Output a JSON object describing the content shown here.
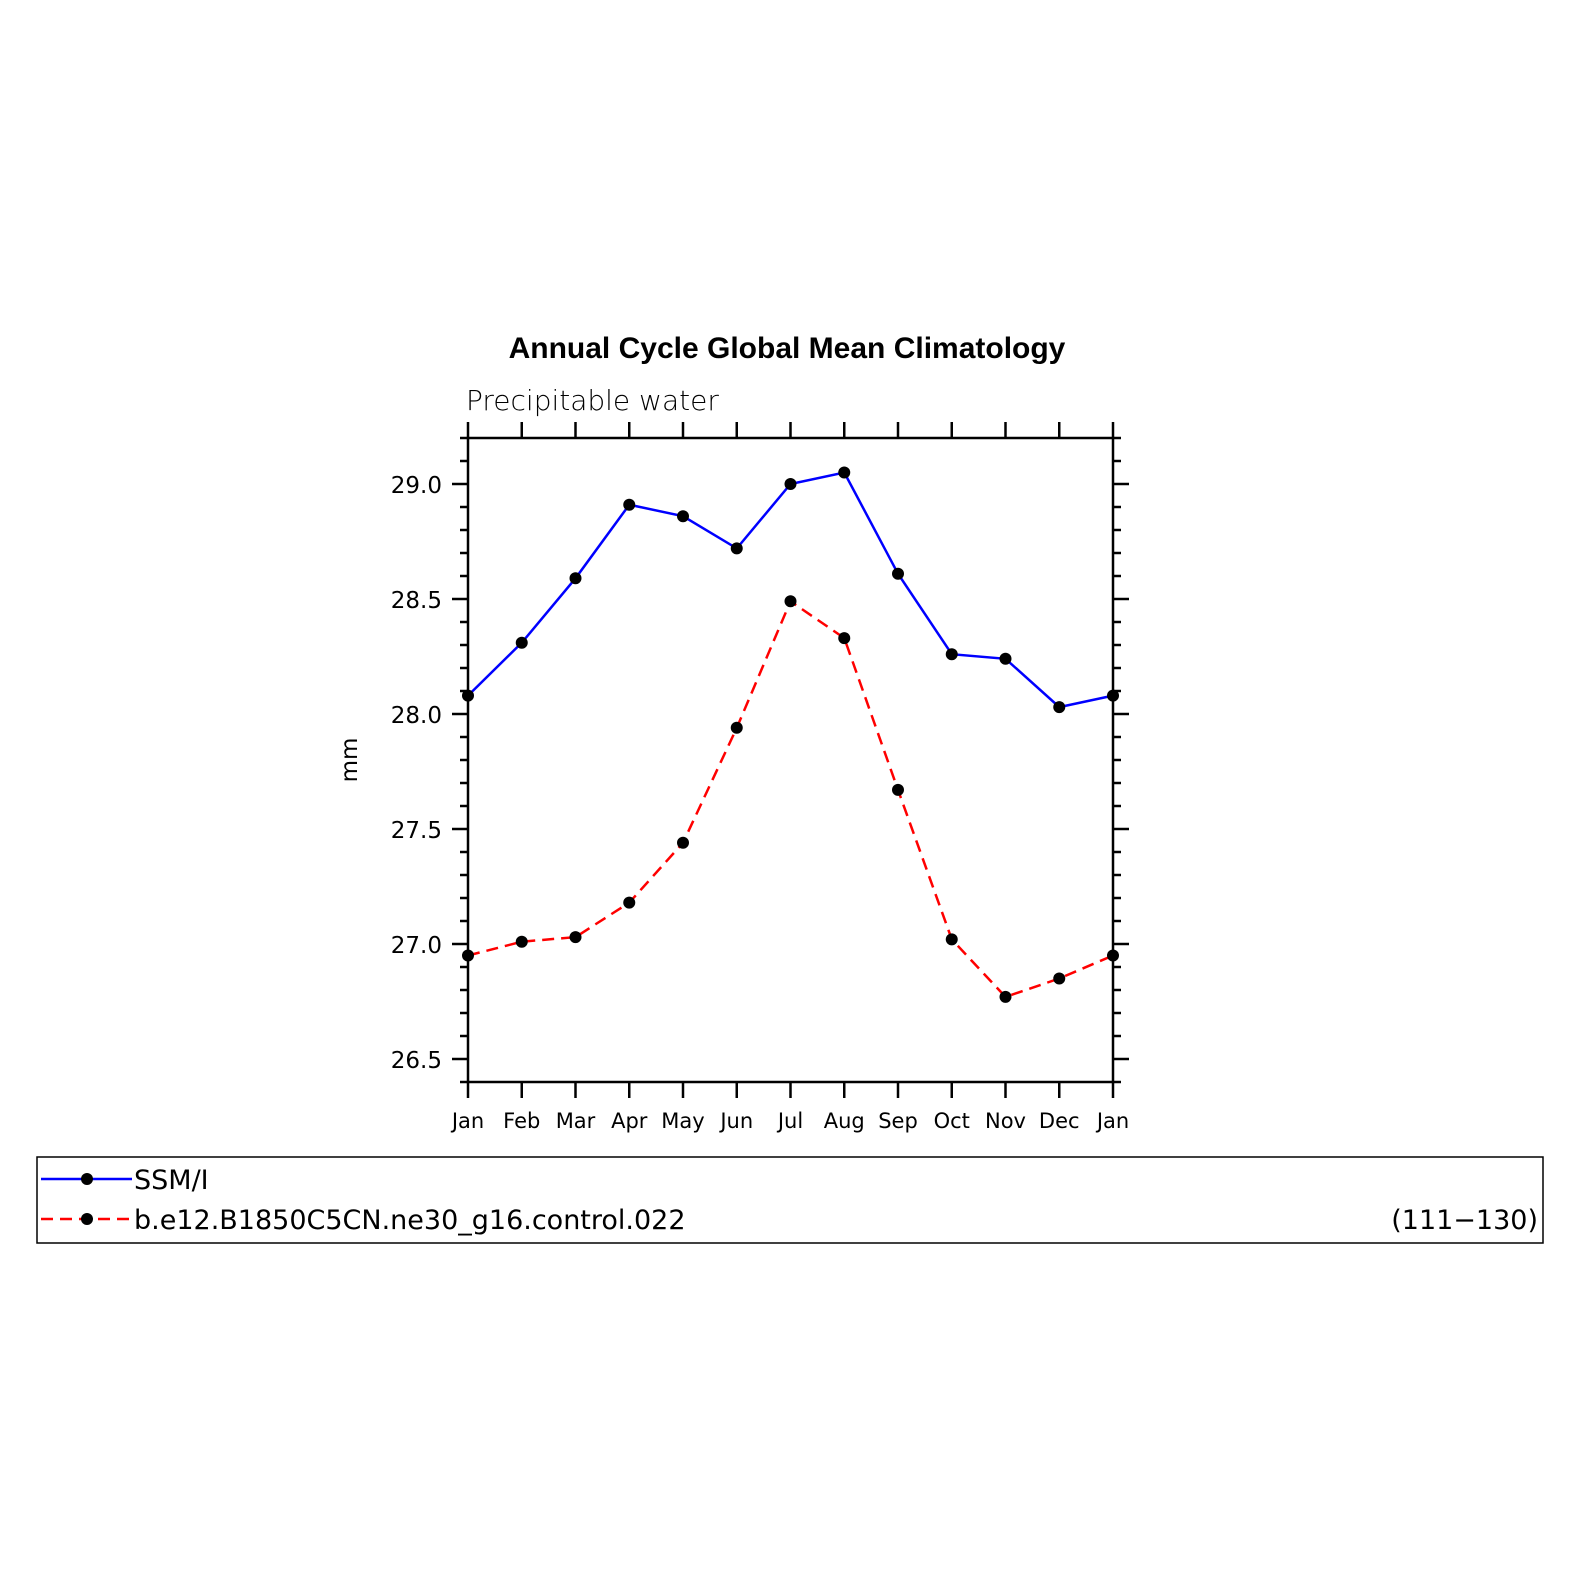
{
  "chart_data": {
    "type": "line",
    "title": "Annual Cycle Global Mean Climatology",
    "subtitle": "Precipitable water",
    "ylabel": "mm",
    "xlabel": "",
    "categories": [
      "Jan",
      "Feb",
      "Mar",
      "Apr",
      "May",
      "Jun",
      "Jul",
      "Aug",
      "Sep",
      "Oct",
      "Nov",
      "Dec",
      "Jan"
    ],
    "ylim": [
      26.4,
      29.2
    ],
    "yticks": [
      "26.5",
      "27.0",
      "27.5",
      "28.0",
      "28.5",
      "29.0"
    ],
    "grid": false,
    "legend_position": "bottom",
    "series": [
      {
        "name": "SSM/I",
        "color": "#0000ff",
        "style": "solid",
        "marker": "filled-circle",
        "values": [
          28.08,
          28.31,
          28.59,
          28.91,
          28.86,
          28.72,
          29.0,
          29.05,
          28.61,
          28.26,
          28.24,
          28.03,
          28.08
        ]
      },
      {
        "name": "b.e12.B1850C5CN.ne30_g16.control.022",
        "years": "(111−130)",
        "color": "#ff0000",
        "style": "dashed",
        "marker": "filled-circle",
        "values": [
          26.95,
          27.01,
          27.03,
          27.18,
          27.44,
          27.94,
          28.49,
          28.33,
          27.67,
          27.02,
          26.77,
          26.85,
          26.95
        ]
      }
    ]
  }
}
